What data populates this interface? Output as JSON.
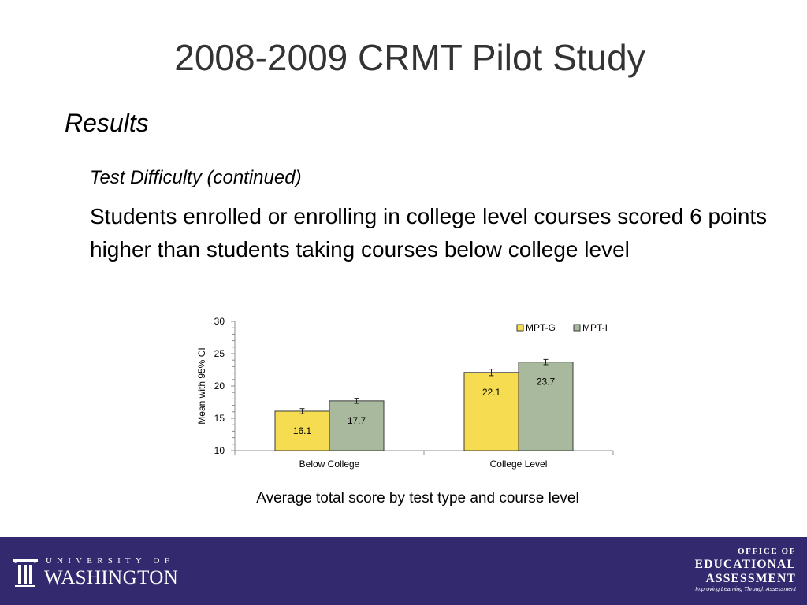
{
  "slide": {
    "title": "2008-2009 CRMT Pilot Study",
    "section": "Results",
    "subsection": "Test Difficulty (continued)",
    "body": "Students enrolled or enrolling in college level courses scored 6 points higher than students taking courses below college level",
    "caption": "Average total score by test type and course level"
  },
  "chart_data": {
    "type": "bar",
    "categories": [
      "Below College",
      "College Level"
    ],
    "series": [
      {
        "name": "MPT-G",
        "values": [
          16.1,
          22.1
        ],
        "ci": [
          0.4,
          0.5
        ],
        "color": "#f5dc50"
      },
      {
        "name": "MPT-I",
        "values": [
          17.7,
          23.7
        ],
        "ci": [
          0.4,
          0.4
        ],
        "color": "#a9b99d"
      }
    ],
    "title": "",
    "xlabel": "",
    "ylabel": "Mean with 95% CI",
    "ylim": [
      10,
      30
    ],
    "yticks": [
      10,
      15,
      20,
      25,
      30
    ],
    "legend": "top-right",
    "grid": false,
    "data_labels": true,
    "error_bars": true
  },
  "footer": {
    "color": "#33296f",
    "uw_logo": {
      "top": "UNIVERSITY OF",
      "main": "WASHINGTON"
    },
    "oea_logo": {
      "line1": "OFFICE OF",
      "line2": "EDUCATIONAL",
      "line3": "ASSESSMENT",
      "tagline": "Improving Learning Through Assessment"
    }
  }
}
